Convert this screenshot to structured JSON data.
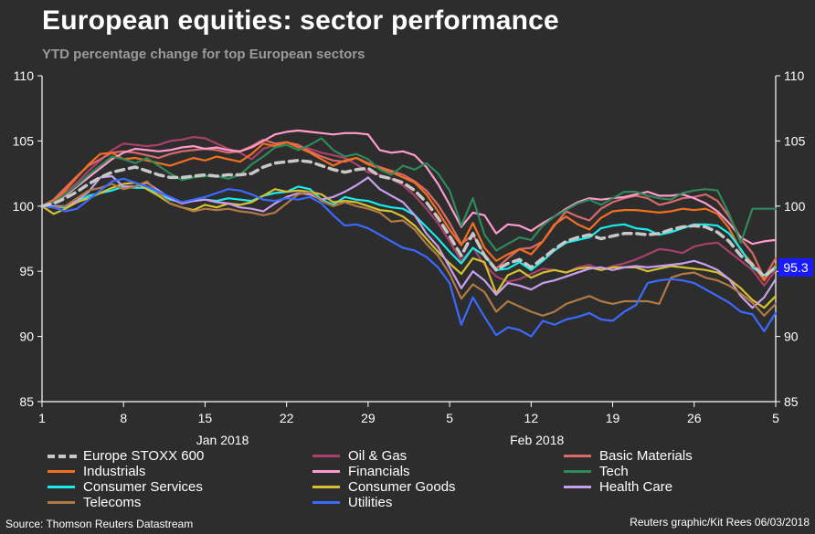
{
  "title": "European equities: sector performance",
  "subtitle": "YTD percentage change for top European sectors",
  "source": "Source: Thomson Reuters Datastream",
  "credit": "Reuters graphic/Kit Rees 06/03/2018",
  "chart_data": {
    "type": "line",
    "title": "European equities: sector performance",
    "subtitle": "YTD percentage change for top European sectors",
    "ylim": [
      85,
      110
    ],
    "y_ticks": [
      85,
      90,
      95,
      100,
      105,
      110
    ],
    "y_tick_labels": [
      "85",
      "90",
      "95",
      "100",
      "105",
      "110"
    ],
    "x_ticks": [
      0,
      7,
      14,
      21,
      28,
      35,
      42,
      49,
      56,
      63
    ],
    "x_tick_labels": [
      "1",
      "8",
      "15",
      "22",
      "29",
      "5",
      "12",
      "19",
      "26",
      "5"
    ],
    "month_labels": [
      {
        "label": "Jan 2018",
        "x": 15.5
      },
      {
        "label": "Feb 2018",
        "x": 42.5
      }
    ],
    "xlim": [
      0,
      63
    ],
    "last_value_label": "95.3",
    "x": [
      0,
      1,
      2,
      3,
      4,
      5,
      6,
      7,
      8,
      9,
      10,
      11,
      12,
      13,
      14,
      15,
      16,
      17,
      18,
      19,
      20,
      21,
      22,
      23,
      24,
      25,
      26,
      27,
      28,
      29,
      30,
      31,
      32,
      33,
      34,
      35,
      36,
      37,
      38,
      39,
      40,
      41,
      42,
      43,
      44,
      45,
      46,
      47,
      48,
      49,
      50,
      51,
      52,
      53,
      54,
      55,
      56,
      57,
      58,
      59,
      60,
      61,
      62,
      63
    ],
    "series": [
      {
        "name": "Oil & Gas",
        "color": "#a8406a",
        "dashed": false,
        "values": [
          100,
          100.3,
          101,
          101.8,
          102.7,
          103.5,
          104.3,
          104.8,
          104.7,
          104.6,
          104.7,
          105,
          105.1,
          105.3,
          105.2,
          104.8,
          104.4,
          104.1,
          103.6,
          104.4,
          104.7,
          104.9,
          104.6,
          104.4,
          104.1,
          103.9,
          103.7,
          103.2,
          102.6,
          102.4,
          102.1,
          101.6,
          100.8,
          99.8,
          98.7,
          97.3,
          95.8,
          96.8,
          95.5,
          94.6,
          94.2,
          94.4,
          94.8,
          95.2,
          95.1,
          94.9,
          95.3,
          95.5,
          95.1,
          95.4,
          95.6,
          95.9,
          96.3,
          96.7,
          96.6,
          96.4,
          96.9,
          97.1,
          97.2,
          96.5,
          95.8,
          95.1,
          93.9,
          95.1
        ]
      },
      {
        "name": "Basic Materials",
        "color": "#d96a6a",
        "dashed": false,
        "values": [
          100,
          100.5,
          101.4,
          102.3,
          103.1,
          103.6,
          104.1,
          104.2,
          104.1,
          103.9,
          103.7,
          104,
          104.2,
          104.3,
          104.4,
          104.3,
          104.1,
          104.2,
          104.6,
          105.1,
          104.8,
          104.9,
          104.7,
          104.2,
          103.8,
          103.5,
          103.4,
          103.7,
          103.3,
          103,
          102.7,
          102.4,
          101.9,
          101.2,
          100.1,
          98.7,
          97.1,
          97.8,
          96.3,
          95.2,
          96,
          96.7,
          96.8,
          97.3,
          98.5,
          99.6,
          99.2,
          98.9,
          99.8,
          100.3,
          100.6,
          100.8,
          100.6,
          100.1,
          100.3,
          100.6,
          100.7,
          100.9,
          100.4,
          99.2,
          97.5,
          96.4,
          94.5,
          96
        ]
      },
      {
        "name": "Industrials",
        "color": "#f07020",
        "dashed": false,
        "values": [
          100,
          100.4,
          101.2,
          102.2,
          103.2,
          104,
          104.1,
          103.6,
          103.7,
          103.5,
          103.3,
          103.1,
          103.4,
          103.7,
          103.5,
          103.8,
          103.6,
          103.4,
          104,
          104.8,
          104.6,
          104.9,
          104.5,
          104.1,
          103.6,
          103.1,
          103.5,
          103.7,
          103.2,
          102.9,
          102.6,
          102.2,
          101.8,
          100.9,
          99.6,
          98.2,
          97,
          98.7,
          96.8,
          95.8,
          96.3,
          96.7,
          96.3,
          97.3,
          98.6,
          99.2,
          98.6,
          98.2,
          99.1,
          99.6,
          99.7,
          99.7,
          99.6,
          99.5,
          99.6,
          99.8,
          99.7,
          99.8,
          99.4,
          98.3,
          96.6,
          95.6,
          94.3,
          95.5
        ]
      },
      {
        "name": "Financials",
        "color": "#ff9ccd",
        "dashed": false,
        "values": [
          100,
          100.3,
          100.8,
          101.5,
          102.2,
          102.9,
          103.6,
          104.1,
          104.4,
          104.3,
          104.2,
          104.3,
          104.5,
          104.6,
          104.4,
          104.5,
          104.3,
          104.2,
          104.5,
          105,
          105.5,
          105.7,
          105.8,
          105.7,
          105.6,
          105.5,
          105.6,
          105.6,
          105.5,
          104.3,
          104.1,
          104.2,
          103.9,
          103,
          101.7,
          100.1,
          98.4,
          99.5,
          99.3,
          97.9,
          98.6,
          98.5,
          98.1,
          98.7,
          99.2,
          99.8,
          100.3,
          100.6,
          100.5,
          100.6,
          100.7,
          100.9,
          101.1,
          100.8,
          100.8,
          100.9,
          100.6,
          100.2,
          99.6,
          98.7,
          97.6,
          97.1,
          97.3,
          97.4
        ]
      },
      {
        "name": "Tech",
        "color": "#2e8a5a",
        "dashed": false,
        "values": [
          100,
          100.3,
          100.9,
          101.6,
          102.4,
          103.1,
          103.8,
          103.6,
          103.3,
          103.7,
          103.1,
          102.5,
          102,
          102.2,
          102.3,
          102.3,
          102.1,
          102.4,
          103.2,
          103.8,
          104.5,
          104.7,
          104.3,
          104.7,
          105.2,
          104.3,
          103.8,
          104,
          103.6,
          102.8,
          102.4,
          103.1,
          102.8,
          103.3,
          102.5,
          101.2,
          98.5,
          100.6,
          97.8,
          96.6,
          97.1,
          97.6,
          97.4,
          98.5,
          99.2,
          99.7,
          100.2,
          100.5,
          100.1,
          100.6,
          101.1,
          101.1,
          100.8,
          100.6,
          100.5,
          101,
          101.2,
          101.3,
          101.2,
          99.4,
          97.2,
          99.8,
          99.8,
          99.8
        ]
      },
      {
        "name": "Consumer Services",
        "color": "#18ecec",
        "dashed": false,
        "values": [
          100,
          99.9,
          99.9,
          100.3,
          100.8,
          101,
          101.2,
          101.5,
          101.4,
          101.4,
          101,
          100.5,
          100.3,
          100.4,
          100.5,
          100.4,
          100.6,
          100.5,
          100.4,
          100.8,
          101,
          101.1,
          101.5,
          101.3,
          100.5,
          100.1,
          100.7,
          100.5,
          100.4,
          100.1,
          99.9,
          99.8,
          99.3,
          98.4,
          97.5,
          96.5,
          95.6,
          96.8,
          96.2,
          95.1,
          95.2,
          95.7,
          95.1,
          95.8,
          96.6,
          97.2,
          97.4,
          97.6,
          98.3,
          98.5,
          98.6,
          98.3,
          98.2,
          97.8,
          98,
          98.3,
          98.6,
          98.6,
          98.5,
          97.9,
          96.7,
          95.3,
          94.7,
          95.3
        ]
      },
      {
        "name": "Consumer Goods",
        "color": "#d4c030",
        "dashed": false,
        "values": [
          100,
          99.4,
          99.8,
          100.3,
          100.6,
          101,
          101.4,
          101.7,
          101.8,
          101.3,
          100.8,
          100.2,
          99.9,
          99.7,
          100.1,
          99.9,
          100.2,
          100.1,
          100.3,
          100.8,
          101.3,
          101.1,
          101.2,
          101.1,
          100.9,
          100.3,
          100.4,
          100.3,
          100,
          99.7,
          99.6,
          99.2,
          98.5,
          97.5,
          96.5,
          95.6,
          94.8,
          96,
          95.7,
          93.3,
          94.7,
          95.1,
          94.5,
          94.9,
          95.1,
          94.9,
          95.2,
          95.3,
          95.1,
          95.3,
          95.3,
          95.3,
          95,
          95.2,
          95.4,
          95.3,
          95.2,
          95.1,
          94.9,
          94.4,
          93.7,
          92.8,
          92.2,
          93.1
        ]
      },
      {
        "name": "Health Care",
        "color": "#c9a0f0",
        "dashed": false,
        "values": [
          100,
          100,
          100,
          100.4,
          101.1,
          102.2,
          102.3,
          101.5,
          101.5,
          101.8,
          101.2,
          100.6,
          100.2,
          100.4,
          100.5,
          100.3,
          100.2,
          99.9,
          99.8,
          99.6,
          100.2,
          100.7,
          101,
          100.9,
          100.5,
          100.7,
          101.1,
          101.6,
          102.2,
          101.3,
          100.8,
          100.3,
          99.3,
          97.9,
          96.9,
          95.3,
          93.7,
          95,
          94.3,
          93.2,
          94.1,
          93.9,
          93.6,
          94.1,
          94.3,
          94.6,
          94.9,
          95.2,
          95.3,
          95.1,
          95.3,
          95.4,
          95.3,
          95.4,
          95.5,
          95.6,
          95.8,
          95.5,
          95.1,
          94.4,
          93.1,
          92.2,
          93,
          94.4
        ]
      },
      {
        "name": "Telecoms",
        "color": "#b07a46",
        "dashed": false,
        "values": [
          100,
          99.9,
          100,
          100.6,
          101.2,
          101.4,
          101.7,
          101.3,
          101.5,
          101.9,
          101,
          100.2,
          99.9,
          99.6,
          99.8,
          99.7,
          99.8,
          99.6,
          99.5,
          99.3,
          99.5,
          100.2,
          100.9,
          101.1,
          100.4,
          100,
          100.3,
          100,
          99.8,
          99.5,
          98.8,
          98.9,
          98.2,
          97.1,
          96.2,
          94.8,
          92.9,
          94,
          93.4,
          91.9,
          92.7,
          92.3,
          91.9,
          91.6,
          91.9,
          92.5,
          92.8,
          93.1,
          92.7,
          92.5,
          92.7,
          92.7,
          92.7,
          92.5,
          94.5,
          94.8,
          94.9,
          94.5,
          94.3,
          93.9,
          93.3,
          92.6,
          91.6,
          92.5
        ]
      },
      {
        "name": "Utilities",
        "color": "#3a6aff",
        "dashed": false,
        "values": [
          100,
          99.9,
          99.6,
          99.8,
          100.5,
          101.2,
          101.9,
          102.1,
          101.8,
          101.5,
          101.1,
          100.7,
          100.3,
          100.5,
          100.7,
          101,
          101.3,
          101.2,
          100.9,
          100.5,
          100.4,
          100.6,
          100.5,
          100.7,
          100.2,
          99.3,
          98.5,
          98.6,
          98.3,
          97.8,
          97.3,
          96.8,
          96.6,
          96.1,
          95.3,
          94.1,
          90.9,
          93,
          91.5,
          90.1,
          90.7,
          90.5,
          90,
          91.2,
          90.9,
          91.3,
          91.5,
          91.8,
          91.3,
          91.2,
          91.9,
          92.4,
          94.1,
          94.3,
          94.4,
          94.3,
          94.1,
          93.6,
          93.1,
          92.6,
          91.9,
          91.7,
          90.4,
          91.8
        ]
      },
      {
        "name": "Europe STOXX 600",
        "color": "#c8c8c8",
        "dashed": true,
        "values": [
          100,
          100.2,
          100.6,
          101.1,
          101.7,
          102.2,
          102.6,
          102.8,
          103,
          102.7,
          102.4,
          102.2,
          102.2,
          102.3,
          102.4,
          102.3,
          102.4,
          102.4,
          102.5,
          103,
          103.3,
          103.4,
          103.5,
          103.4,
          103.1,
          102.8,
          102.6,
          102.8,
          102.9,
          102.3,
          102.1,
          101.8,
          101.2,
          100.3,
          99.1,
          97.7,
          96.2,
          97.9,
          96.2,
          95.1,
          95.6,
          95.9,
          95.3,
          96,
          96.7,
          97.3,
          97.6,
          97.8,
          97.5,
          97.7,
          97.9,
          97.9,
          97.8,
          97.9,
          98.2,
          98.4,
          98.5,
          98.4,
          98,
          97.3,
          96.2,
          95.5,
          94.6,
          95.3
        ]
      }
    ]
  },
  "legend": [
    {
      "label": "Europe STOXX 600",
      "color": "#c8c8c8",
      "dashed": true
    },
    {
      "label": "Oil & Gas",
      "color": "#a8406a",
      "dashed": false
    },
    {
      "label": "Basic Materials",
      "color": "#d96a6a",
      "dashed": false
    },
    {
      "label": "Industrials",
      "color": "#f07020",
      "dashed": false
    },
    {
      "label": "Financials",
      "color": "#ff9ccd",
      "dashed": false
    },
    {
      "label": "Tech",
      "color": "#2e8a5a",
      "dashed": false
    },
    {
      "label": "Consumer Services",
      "color": "#18ecec",
      "dashed": false
    },
    {
      "label": "Consumer Goods",
      "color": "#d4c030",
      "dashed": false
    },
    {
      "label": "Health Care",
      "color": "#c9a0f0",
      "dashed": false
    },
    {
      "label": "Telecoms",
      "color": "#b07a46",
      "dashed": false
    },
    {
      "label": "Utilities",
      "color": "#3a6aff",
      "dashed": false
    }
  ],
  "colors": {
    "background": "#2d2d2d",
    "axis": "#ffffff",
    "last_value_badge": "#1a1aff"
  }
}
